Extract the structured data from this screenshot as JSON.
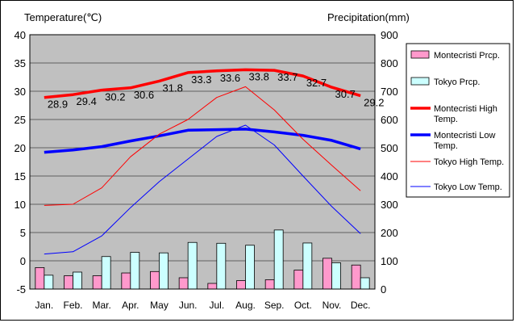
{
  "chart_data": {
    "type": "line",
    "ylabel_left": "Temperature(℃)",
    "ylabel_right": "Precipitation(mm)",
    "categories": [
      "Jan.",
      "Feb.",
      "Mar.",
      "Apr.",
      "May",
      "Jun.",
      "Jul.",
      "Aug.",
      "Sep.",
      "Oct.",
      "Nov.",
      "Dec."
    ],
    "ylim_left": [
      -5,
      40
    ],
    "yticks_left": [
      "-5",
      "0",
      "5",
      "10",
      "15",
      "20",
      "25",
      "30",
      "35",
      "40"
    ],
    "ylim_right": [
      0,
      900
    ],
    "yticks_right": [
      "0",
      "100",
      "200",
      "300",
      "400",
      "500",
      "600",
      "700",
      "800",
      "900"
    ],
    "grid": true,
    "legend_position": "right",
    "bar_series": [
      {
        "name": "Montecristi Prcp.",
        "color": "#ff99cc",
        "values": [
          76,
          47,
          47,
          57,
          62,
          40,
          20,
          30,
          33,
          67,
          109,
          85
        ]
      },
      {
        "name": "Tokyo Prcp.",
        "color": "#ccffff",
        "values": [
          49,
          60,
          115,
          130,
          128,
          165,
          162,
          155,
          209,
          163,
          93,
          40
        ]
      }
    ],
    "line_series": [
      {
        "name": "Montecristi High Temp.",
        "color": "#ff0000",
        "width": "thick",
        "values": [
          28.9,
          29.4,
          30.2,
          30.6,
          31.8,
          33.3,
          33.6,
          33.8,
          33.7,
          32.7,
          30.7,
          29.2
        ]
      },
      {
        "name": "Montecristi Low Temp.",
        "color": "#0000ff",
        "width": "thick",
        "values": [
          19.2,
          19.6,
          20.2,
          21.2,
          22.1,
          23.1,
          23.2,
          23.3,
          22.8,
          22.2,
          21.3,
          19.8
        ]
      },
      {
        "name": "Tokyo High Temp.",
        "color": "#ff0000",
        "width": "thin",
        "values": [
          9.8,
          10.0,
          12.9,
          18.4,
          22.4,
          25.0,
          28.9,
          30.8,
          26.7,
          21.5,
          16.9,
          12.4
        ]
      },
      {
        "name": "Tokyo Low Temp.",
        "color": "#0000ff",
        "width": "thin",
        "values": [
          1.2,
          1.6,
          4.4,
          9.4,
          14.0,
          18.0,
          22.0,
          24.0,
          20.5,
          15.0,
          9.6,
          4.8
        ]
      }
    ],
    "data_labels": [
      "28.9",
      "29.4",
      "30.2",
      "30.6",
      "31.8",
      "33.3",
      "33.6",
      "33.8",
      "33.7",
      "32.7",
      "30.7",
      "29.2"
    ],
    "data_labels_series": "Montecristi High Temp."
  }
}
